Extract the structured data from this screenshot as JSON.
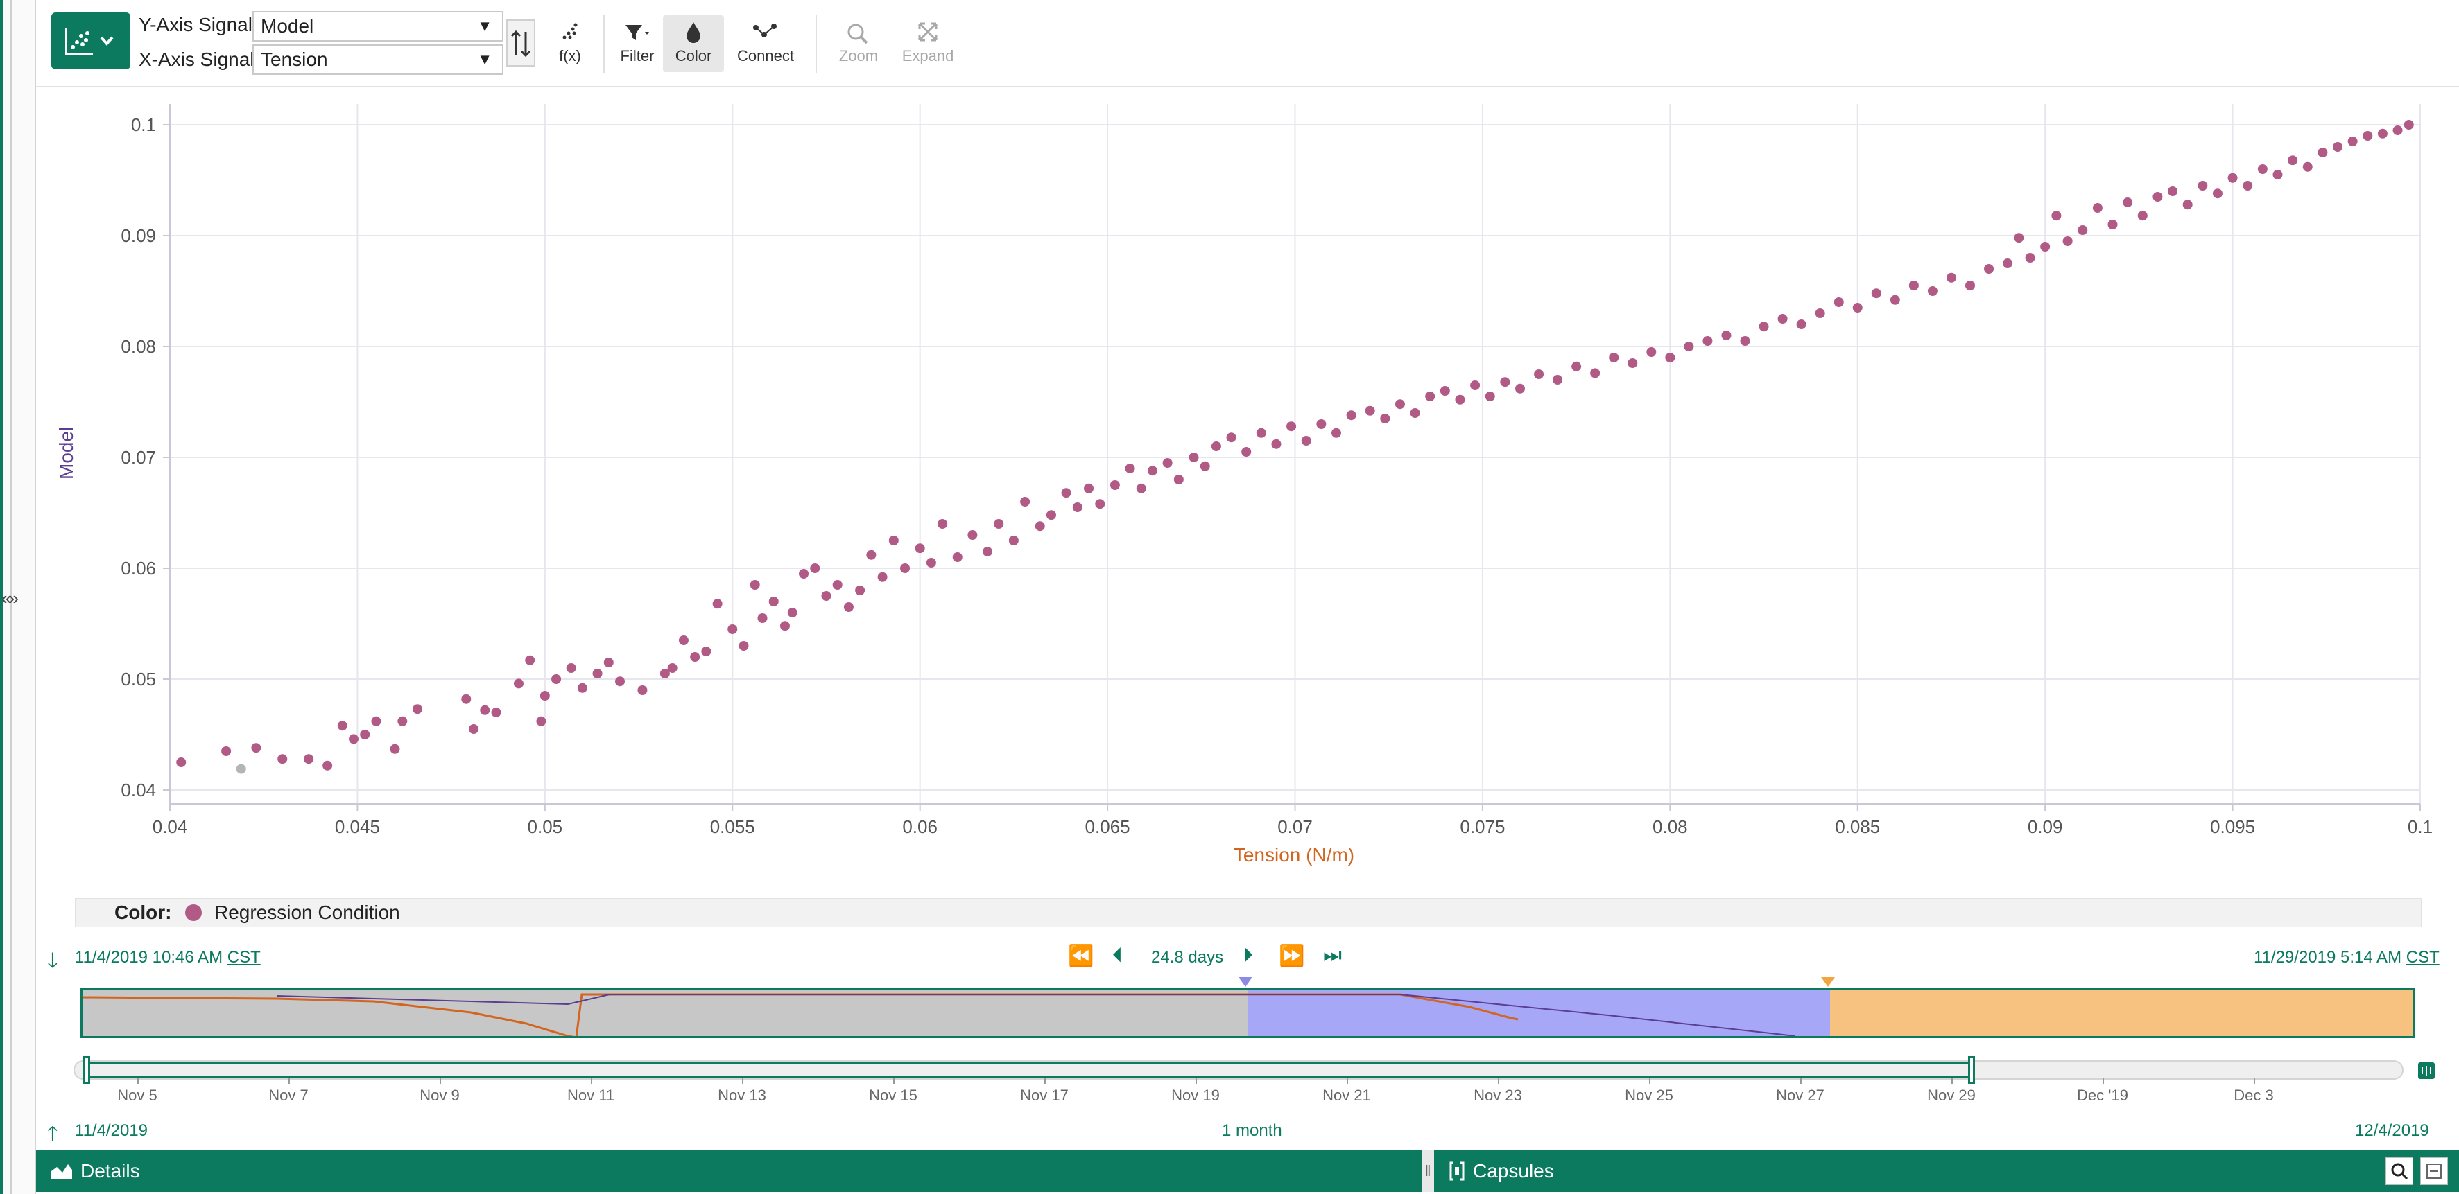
{
  "toolbar": {
    "y_axis_label": "Y-Axis Signal:",
    "y_axis_value": "Model",
    "x_axis_label": "X-Axis Signal:",
    "x_axis_value": "Tension",
    "tools": {
      "fx": "f(x)",
      "filter": "Filter",
      "color": "Color",
      "connect": "Connect",
      "zoom": "Zoom",
      "expand": "Expand"
    }
  },
  "plot": {
    "y_ticks": [
      "0.1",
      "0.09",
      "0.08",
      "0.07",
      "0.06",
      "0.05",
      "0.04"
    ],
    "x_ticks": [
      "0.04",
      "0.045",
      "0.05",
      "0.055",
      "0.06",
      "0.065",
      "0.07",
      "0.075",
      "0.08",
      "0.085",
      "0.09",
      "0.095",
      "0.1"
    ],
    "y_title": "Model",
    "x_title": "Tension (N/m)",
    "point_color": "#b05a85"
  },
  "chart_data": {
    "type": "scatter",
    "title": "",
    "xlabel": "Tension (N/m)",
    "ylabel": "Model",
    "xlim": [
      0.04,
      0.1
    ],
    "ylim": [
      0.04,
      0.1
    ],
    "grid": true,
    "series": [
      {
        "name": "Regression Condition",
        "color": "#b05a85",
        "points": [
          [
            0.0403,
            0.0425
          ],
          [
            0.0415,
            0.0435
          ],
          [
            0.0423,
            0.0438
          ],
          [
            0.043,
            0.0428
          ],
          [
            0.0437,
            0.0428
          ],
          [
            0.0442,
            0.0422
          ],
          [
            0.0446,
            0.0458
          ],
          [
            0.0449,
            0.0446
          ],
          [
            0.0452,
            0.045
          ],
          [
            0.0455,
            0.0462
          ],
          [
            0.046,
            0.0437
          ],
          [
            0.0462,
            0.0462
          ],
          [
            0.0466,
            0.0473
          ],
          [
            0.0479,
            0.0482
          ],
          [
            0.0481,
            0.0455
          ],
          [
            0.0484,
            0.0472
          ],
          [
            0.0487,
            0.047
          ],
          [
            0.0493,
            0.0496
          ],
          [
            0.0496,
            0.0517
          ],
          [
            0.0499,
            0.0462
          ],
          [
            0.05,
            0.0485
          ],
          [
            0.0503,
            0.05
          ],
          [
            0.0507,
            0.051
          ],
          [
            0.051,
            0.0492
          ],
          [
            0.0514,
            0.0505
          ],
          [
            0.0517,
            0.0515
          ],
          [
            0.052,
            0.0498
          ],
          [
            0.0526,
            0.049
          ],
          [
            0.0532,
            0.0505
          ],
          [
            0.0534,
            0.051
          ],
          [
            0.0537,
            0.0535
          ],
          [
            0.054,
            0.052
          ],
          [
            0.0543,
            0.0525
          ],
          [
            0.0546,
            0.0568
          ],
          [
            0.055,
            0.0545
          ],
          [
            0.0553,
            0.053
          ],
          [
            0.0556,
            0.0585
          ],
          [
            0.0558,
            0.0555
          ],
          [
            0.0561,
            0.057
          ],
          [
            0.0564,
            0.0548
          ],
          [
            0.0566,
            0.056
          ],
          [
            0.0569,
            0.0595
          ],
          [
            0.0572,
            0.06
          ],
          [
            0.0575,
            0.0575
          ],
          [
            0.0578,
            0.0585
          ],
          [
            0.0581,
            0.0565
          ],
          [
            0.0584,
            0.058
          ],
          [
            0.0587,
            0.0612
          ],
          [
            0.059,
            0.0592
          ],
          [
            0.0593,
            0.0625
          ],
          [
            0.0596,
            0.06
          ],
          [
            0.06,
            0.0618
          ],
          [
            0.0603,
            0.0605
          ],
          [
            0.0606,
            0.064
          ],
          [
            0.061,
            0.061
          ],
          [
            0.0614,
            0.063
          ],
          [
            0.0618,
            0.0615
          ],
          [
            0.0621,
            0.064
          ],
          [
            0.0625,
            0.0625
          ],
          [
            0.0628,
            0.066
          ],
          [
            0.0632,
            0.0638
          ],
          [
            0.0635,
            0.0648
          ],
          [
            0.0639,
            0.0668
          ],
          [
            0.0642,
            0.0655
          ],
          [
            0.0645,
            0.0672
          ],
          [
            0.0648,
            0.0658
          ],
          [
            0.0652,
            0.0675
          ],
          [
            0.0656,
            0.069
          ],
          [
            0.0659,
            0.0672
          ],
          [
            0.0662,
            0.0688
          ],
          [
            0.0666,
            0.0695
          ],
          [
            0.0669,
            0.068
          ],
          [
            0.0673,
            0.07
          ],
          [
            0.0676,
            0.0692
          ],
          [
            0.0679,
            0.071
          ],
          [
            0.0683,
            0.0718
          ],
          [
            0.0687,
            0.0705
          ],
          [
            0.0691,
            0.0722
          ],
          [
            0.0695,
            0.0712
          ],
          [
            0.0699,
            0.0728
          ],
          [
            0.0703,
            0.0715
          ],
          [
            0.0707,
            0.073
          ],
          [
            0.0711,
            0.0722
          ],
          [
            0.0715,
            0.0738
          ],
          [
            0.072,
            0.0742
          ],
          [
            0.0724,
            0.0735
          ],
          [
            0.0728,
            0.0748
          ],
          [
            0.0732,
            0.074
          ],
          [
            0.0736,
            0.0755
          ],
          [
            0.074,
            0.076
          ],
          [
            0.0744,
            0.0752
          ],
          [
            0.0748,
            0.0765
          ],
          [
            0.0752,
            0.0755
          ],
          [
            0.0756,
            0.0768
          ],
          [
            0.076,
            0.0762
          ],
          [
            0.0765,
            0.0775
          ],
          [
            0.077,
            0.077
          ],
          [
            0.0775,
            0.0782
          ],
          [
            0.078,
            0.0776
          ],
          [
            0.0785,
            0.079
          ],
          [
            0.079,
            0.0785
          ],
          [
            0.0795,
            0.0795
          ],
          [
            0.08,
            0.079
          ],
          [
            0.0805,
            0.08
          ],
          [
            0.081,
            0.0805
          ],
          [
            0.0815,
            0.081
          ],
          [
            0.082,
            0.0805
          ],
          [
            0.0825,
            0.0818
          ],
          [
            0.083,
            0.0825
          ],
          [
            0.0835,
            0.082
          ],
          [
            0.084,
            0.083
          ],
          [
            0.0845,
            0.084
          ],
          [
            0.085,
            0.0835
          ],
          [
            0.0855,
            0.0848
          ],
          [
            0.086,
            0.0842
          ],
          [
            0.0865,
            0.0855
          ],
          [
            0.087,
            0.085
          ],
          [
            0.0875,
            0.0862
          ],
          [
            0.088,
            0.0855
          ],
          [
            0.0885,
            0.087
          ],
          [
            0.089,
            0.0875
          ],
          [
            0.0893,
            0.0898
          ],
          [
            0.0896,
            0.088
          ],
          [
            0.09,
            0.089
          ],
          [
            0.0903,
            0.0918
          ],
          [
            0.0906,
            0.0895
          ],
          [
            0.091,
            0.0905
          ],
          [
            0.0914,
            0.0925
          ],
          [
            0.0918,
            0.091
          ],
          [
            0.0922,
            0.093
          ],
          [
            0.0926,
            0.0918
          ],
          [
            0.093,
            0.0935
          ],
          [
            0.0934,
            0.094
          ],
          [
            0.0938,
            0.0928
          ],
          [
            0.0942,
            0.0945
          ],
          [
            0.0946,
            0.0938
          ],
          [
            0.095,
            0.0952
          ],
          [
            0.0954,
            0.0945
          ],
          [
            0.0958,
            0.096
          ],
          [
            0.0962,
            0.0955
          ],
          [
            0.0966,
            0.0968
          ],
          [
            0.097,
            0.0962
          ],
          [
            0.0974,
            0.0975
          ],
          [
            0.0978,
            0.098
          ],
          [
            0.0982,
            0.0985
          ],
          [
            0.0986,
            0.099
          ],
          [
            0.099,
            0.0992
          ],
          [
            0.0994,
            0.0995
          ],
          [
            0.0997,
            0.1
          ]
        ]
      }
    ],
    "highlighted_point": [
      0.0419,
      0.0419
    ]
  },
  "legend": {
    "label": "Color:",
    "item": "Regression Condition",
    "item_color": "#b05a85"
  },
  "time": {
    "start": "11/4/2019 10:46 AM",
    "start_tz": "CST",
    "end": "11/29/2019 5:14 AM",
    "end_tz": "CST",
    "duration": "24.8 days",
    "range_start": "11/4/2019",
    "range_end": "12/4/2019",
    "range_duration": "1 month"
  },
  "capsules": {
    "segments": [
      {
        "name": "Gray capsule",
        "start_frac": 0.0,
        "end_frac": 0.5,
        "color": "#c7c7c7"
      },
      {
        "name": "Blue capsule",
        "start_frac": 0.5,
        "end_frac": 0.75,
        "color": "#a7a7f7"
      },
      {
        "name": "Orange capsule",
        "start_frac": 0.75,
        "end_frac": 1.0,
        "color": "#f7c27f"
      }
    ],
    "markers": [
      {
        "color": "#8a8ae8",
        "pos_frac": 0.5
      },
      {
        "color": "#f0a540",
        "pos_frac": 0.75
      }
    ]
  },
  "range_slider": {
    "date_ticks": [
      "Nov 5",
      "Nov 7",
      "Nov 9",
      "Nov 11",
      "Nov 13",
      "Nov 15",
      "Nov 17",
      "Nov 19",
      "Nov 21",
      "Nov 23",
      "Nov 25",
      "Nov 27",
      "Nov 29",
      "Dec '19",
      "Dec 3"
    ],
    "selection_start_frac": 0.0,
    "selection_end_frac": 0.81
  },
  "panels": {
    "details": "Details",
    "capsules": "Capsules"
  },
  "colors": {
    "accent": "#0b7a5e",
    "model_signal": "#5b3d91",
    "tension_signal": "#d2651f"
  }
}
